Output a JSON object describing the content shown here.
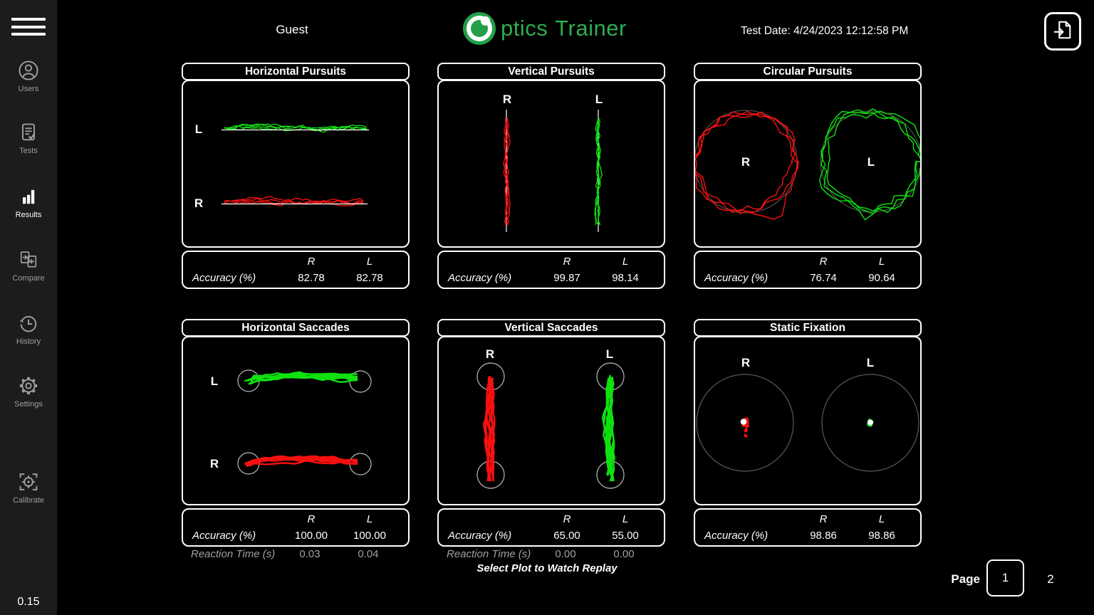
{
  "header": {
    "user_name": "Guest",
    "logo": {
      "text_part1": "ptics",
      "text_part2": "Trainer"
    },
    "test_date": "Test Date: 4/24/2023 12:12:58 PM"
  },
  "sidebar": {
    "items": [
      {
        "label": "Users",
        "active": false
      },
      {
        "label": "Tests",
        "active": false
      },
      {
        "label": "Results",
        "active": true
      },
      {
        "label": "Compare",
        "active": false
      },
      {
        "label": "History",
        "active": false
      },
      {
        "label": "Settings",
        "active": false
      },
      {
        "label": "Calibrate",
        "active": false
      }
    ],
    "version": "0.15"
  },
  "panels": [
    {
      "title": "Horizontal Pursuits",
      "eye_r": "R",
      "eye_l": "L",
      "col_r": "R",
      "col_l": "L",
      "accuracy_label": "Accuracy (%)",
      "accuracy_r": "82.78",
      "accuracy_l": "82.78"
    },
    {
      "title": "Vertical Pursuits",
      "eye_r": "R",
      "eye_l": "L",
      "col_r": "R",
      "col_l": "L",
      "accuracy_label": "Accuracy (%)",
      "accuracy_r": "99.87",
      "accuracy_l": "98.14"
    },
    {
      "title": "Circular Pursuits",
      "eye_r": "R",
      "eye_l": "L",
      "col_r": "R",
      "col_l": "L",
      "accuracy_label": "Accuracy (%)",
      "accuracy_r": "76.74",
      "accuracy_l": "90.64"
    },
    {
      "title": "Horizontal Saccades",
      "eye_r": "R",
      "eye_l": "L",
      "col_r": "R",
      "col_l": "L",
      "accuracy_label": "Accuracy (%)",
      "accuracy_r": "100.00",
      "accuracy_l": "100.00",
      "reaction_label": "Reaction Time (s)",
      "reaction_r": "0.03",
      "reaction_l": "0.04"
    },
    {
      "title": "Vertical Saccades",
      "eye_r": "R",
      "eye_l": "L",
      "col_r": "R",
      "col_l": "L",
      "accuracy_label": "Accuracy (%)",
      "accuracy_r": "65.00",
      "accuracy_l": "55.00",
      "reaction_label": "Reaction Time (s)",
      "reaction_r": "0.00",
      "reaction_l": "0.00"
    },
    {
      "title": "Static Fixation",
      "eye_r": "R",
      "eye_l": "L",
      "col_r": "R",
      "col_l": "L",
      "accuracy_label": "Accuracy (%)",
      "accuracy_r": "98.86",
      "accuracy_l": "98.86"
    }
  ],
  "footer": {
    "replay_hint": "Select Plot to Watch Replay",
    "page_label": "Page",
    "current_page": "1",
    "next_page": "2"
  },
  "colors": {
    "trace_red": "#f81010",
    "trace_green": "#10e210",
    "logo_green": "#23a049",
    "logo_text_green": "#2fac4f",
    "target_circle_gray": "#b9b9b9",
    "ref_circle_gray": "#4a4a4a",
    "fixation_circle_gray": "#5a5a5a"
  }
}
